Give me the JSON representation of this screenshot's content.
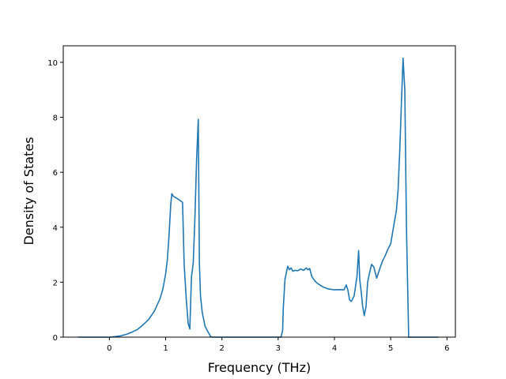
{
  "chart_data": {
    "type": "line",
    "title": "",
    "xlabel": "Frequency (THz)",
    "ylabel": "Density of States",
    "xlim": [
      -0.82,
      6.15
    ],
    "ylim": [
      0,
      10.6
    ],
    "xticks": [
      0,
      1,
      2,
      3,
      4,
      5,
      6
    ],
    "xtick_labels": [
      "0",
      "1",
      "2",
      "3",
      "4",
      "5",
      "6"
    ],
    "yticks": [
      0,
      2,
      4,
      6,
      8,
      10
    ],
    "ytick_labels": [
      "0",
      "2",
      "4",
      "6",
      "8",
      "10"
    ],
    "grid": false,
    "legend": "none",
    "series": [
      {
        "color": "#1f77b4",
        "x": [
          -0.55,
          -0.2,
          0.0,
          0.1,
          0.2,
          0.3,
          0.4,
          0.5,
          0.6,
          0.7,
          0.8,
          0.9,
          0.95,
          1.0,
          1.03,
          1.06,
          1.09,
          1.11,
          1.14,
          1.2,
          1.25,
          1.3,
          1.33,
          1.37,
          1.4,
          1.43,
          1.46,
          1.49,
          1.52,
          1.55,
          1.58,
          1.6,
          1.62,
          1.65,
          1.7,
          1.75,
          1.8,
          1.83,
          1.9,
          2.2,
          2.5,
          2.8,
          3.05,
          3.08,
          3.09,
          3.12,
          3.17,
          3.2,
          3.23,
          3.26,
          3.3,
          3.35,
          3.4,
          3.45,
          3.5,
          3.53,
          3.56,
          3.6,
          3.65,
          3.7,
          3.8,
          3.9,
          4.0,
          4.1,
          4.17,
          4.21,
          4.24,
          4.27,
          4.3,
          4.35,
          4.4,
          4.43,
          4.45,
          4.48,
          4.5,
          4.53,
          4.56,
          4.59,
          4.62,
          4.66,
          4.7,
          4.75,
          4.8,
          4.85,
          4.9,
          4.95,
          5.0,
          5.05,
          5.1,
          5.13,
          5.16,
          5.19,
          5.22,
          5.25,
          5.28,
          5.32,
          5.35,
          5.6,
          5.85
        ],
        "y": [
          0.0,
          0.0,
          0.0,
          0.02,
          0.05,
          0.1,
          0.18,
          0.28,
          0.45,
          0.65,
          0.95,
          1.4,
          1.75,
          2.3,
          2.8,
          3.7,
          4.8,
          5.22,
          5.12,
          5.05,
          4.98,
          4.9,
          2.6,
          1.3,
          0.5,
          0.3,
          2.2,
          2.7,
          4.3,
          6.5,
          7.92,
          2.7,
          1.5,
          0.9,
          0.4,
          0.2,
          0.02,
          0.0,
          0.0,
          0.0,
          0.0,
          0.0,
          0.0,
          0.25,
          1.0,
          2.1,
          2.58,
          2.45,
          2.52,
          2.4,
          2.43,
          2.42,
          2.48,
          2.43,
          2.52,
          2.45,
          2.5,
          2.2,
          2.05,
          1.95,
          1.82,
          1.75,
          1.72,
          1.73,
          1.72,
          1.9,
          1.7,
          1.35,
          1.3,
          1.5,
          2.2,
          3.15,
          2.1,
          1.55,
          1.15,
          0.78,
          1.1,
          2.0,
          2.3,
          2.65,
          2.55,
          2.15,
          2.45,
          2.75,
          2.95,
          3.2,
          3.4,
          4.0,
          4.6,
          5.3,
          6.7,
          8.5,
          10.15,
          9.0,
          4.0,
          0.0,
          0.0,
          0.0,
          0.0
        ]
      }
    ]
  }
}
